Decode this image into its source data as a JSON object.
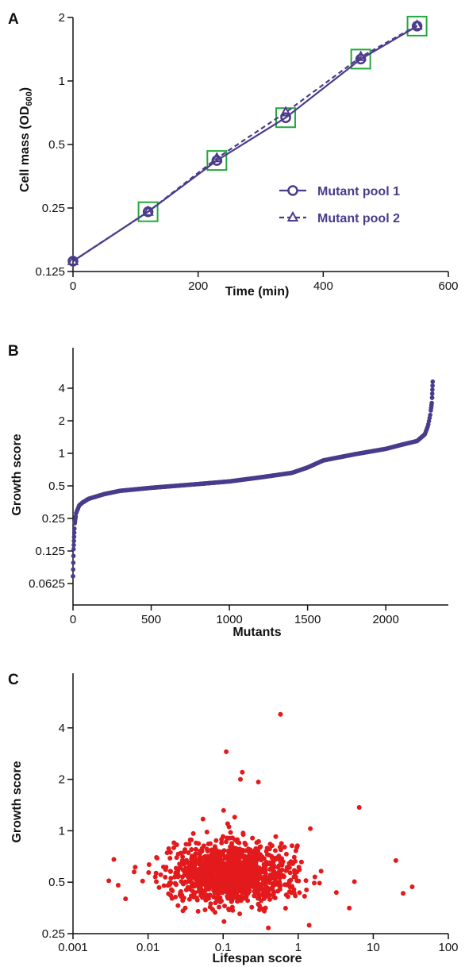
{
  "colors": {
    "series": "#4a3b8c",
    "box": "#22a93a",
    "scatter": "#e31a1c",
    "axis": "#111111"
  },
  "chart_data": [
    {
      "panel": "A",
      "type": "line",
      "xlabel": "Time (min)",
      "ylabel_main": "Cell mass (OD",
      "ylabel_sub": "600",
      "ylabel_close": ")",
      "xlim": [
        0,
        600
      ],
      "ylim": [
        0.125,
        2
      ],
      "yscale": "log2",
      "xticks": [
        0,
        200,
        400,
        600
      ],
      "yticks": [
        0.125,
        0.25,
        0.5,
        1,
        2
      ],
      "ytick_labels": [
        "0.125",
        "0.25",
        "0.5",
        "1",
        "2"
      ],
      "legend_position": "center-right",
      "series": [
        {
          "name": "Mutant pool 1",
          "marker": "circle",
          "line": "solid",
          "x": [
            0,
            120,
            230,
            340,
            460,
            550
          ],
          "y": [
            0.14,
            0.24,
            0.42,
            0.67,
            1.27,
            1.82
          ]
        },
        {
          "name": "Mutant pool 2",
          "marker": "triangle",
          "line": "dashed",
          "x": [
            0,
            120,
            230,
            340,
            460,
            550
          ],
          "y": [
            0.14,
            0.24,
            0.43,
            0.71,
            1.3,
            1.83
          ]
        }
      ],
      "highlighted_x": [
        120,
        230,
        340,
        460,
        550
      ]
    },
    {
      "panel": "B",
      "type": "scatter",
      "xlabel": "Mutants",
      "ylabel": "Growth score",
      "xlim": [
        0,
        2400
      ],
      "ylim": [
        0.0625,
        8
      ],
      "yscale": "log2",
      "xticks": [
        0,
        500,
        1000,
        1500,
        2000
      ],
      "yticks": [
        0.0625,
        0.125,
        0.25,
        0.5,
        1,
        2,
        4
      ],
      "ytick_labels": [
        "0.0625",
        "0.125",
        "0.25",
        "0.5",
        "1",
        "2",
        "4"
      ],
      "n_points": 2300,
      "curve": {
        "rank": [
          0,
          4,
          10,
          20,
          40,
          60,
          100,
          200,
          300,
          500,
          800,
          1000,
          1200,
          1400,
          1500,
          1600,
          1800,
          2000,
          2100,
          2200,
          2250,
          2270,
          2285,
          2295,
          2300
        ],
        "value": [
          0.073,
          0.13,
          0.22,
          0.28,
          0.33,
          0.35,
          0.38,
          0.42,
          0.45,
          0.48,
          0.52,
          0.55,
          0.6,
          0.66,
          0.74,
          0.86,
          0.98,
          1.1,
          1.2,
          1.3,
          1.5,
          1.8,
          2.3,
          3.0,
          4.6
        ]
      }
    },
    {
      "panel": "C",
      "type": "scatter",
      "xlabel": "Lifespan score",
      "ylabel": "Growth score",
      "xlim": [
        0.001,
        100
      ],
      "ylim": [
        0.25,
        8
      ],
      "xscale": "log10",
      "yscale": "log2",
      "xticks": [
        0.001,
        0.01,
        0.1,
        1,
        10,
        100
      ],
      "xtick_labels": [
        "0.001",
        "0.01",
        "0.1",
        "1",
        "10",
        "100"
      ],
      "yticks": [
        0.25,
        0.5,
        1,
        2,
        4
      ],
      "ytick_labels": [
        "0.25",
        "0.5",
        "1",
        "2",
        "4"
      ],
      "n_points": 1200,
      "cluster_center": {
        "x": 0.13,
        "y": 0.55
      },
      "outliers": [
        {
          "x": 0.58,
          "y": 4.8
        },
        {
          "x": 0.11,
          "y": 2.9
        },
        {
          "x": 0.18,
          "y": 2.2
        },
        {
          "x": 0.17,
          "y": 2.0
        },
        {
          "x": 6.5,
          "y": 1.37
        },
        {
          "x": 0.0035,
          "y": 0.68
        },
        {
          "x": 0.004,
          "y": 0.48
        },
        {
          "x": 0.003,
          "y": 0.51
        },
        {
          "x": 25,
          "y": 0.43
        },
        {
          "x": 33,
          "y": 0.47
        },
        {
          "x": 20,
          "y": 0.67
        },
        {
          "x": 0.4,
          "y": 0.27
        },
        {
          "x": 1.4,
          "y": 0.28
        }
      ]
    }
  ]
}
